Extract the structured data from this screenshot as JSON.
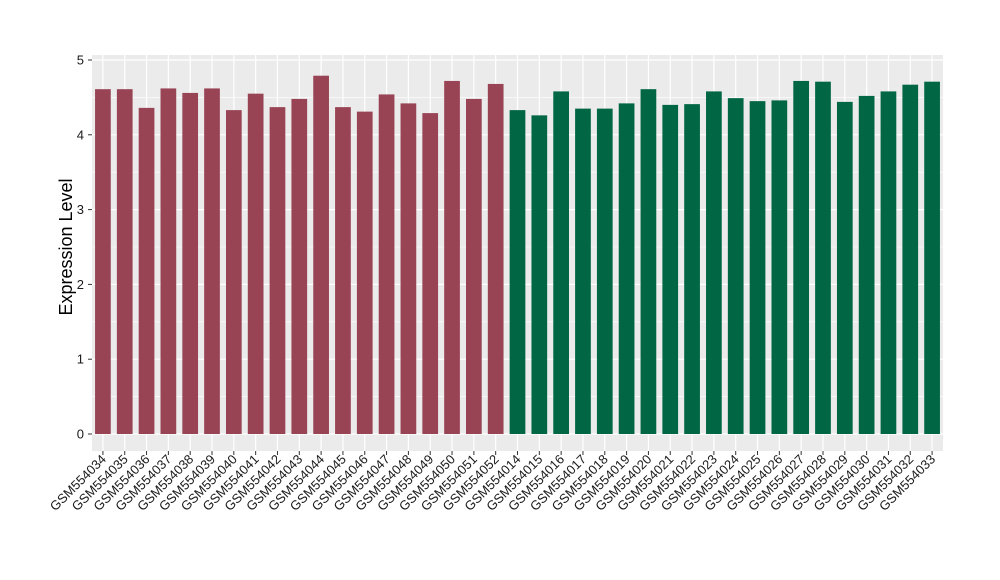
{
  "chart_data": {
    "type": "bar",
    "title": "",
    "xlabel": "",
    "ylabel": "Expression Level",
    "ylim": [
      0,
      5
    ],
    "yticks": [
      0,
      1,
      2,
      3,
      4,
      5
    ],
    "grid": true,
    "background": "#EBEBEB",
    "gridline_color": "#FFFFFF",
    "categories": [
      "GSM554034",
      "GSM554035",
      "GSM554036",
      "GSM554037",
      "GSM554038",
      "GSM554039",
      "GSM554040",
      "GSM554041",
      "GSM554042",
      "GSM554043",
      "GSM554044",
      "GSM554045",
      "GSM554046",
      "GSM554047",
      "GSM554048",
      "GSM554049",
      "GSM554050",
      "GSM554051",
      "GSM554052",
      "GSM554014",
      "GSM554015",
      "GSM554016",
      "GSM554017",
      "GSM554018",
      "GSM554019",
      "GSM554020",
      "GSM554021",
      "GSM554022",
      "GSM554023",
      "GSM554024",
      "GSM554025",
      "GSM554026",
      "GSM554027",
      "GSM554028",
      "GSM554029",
      "GSM554030",
      "GSM554031",
      "GSM554032",
      "GSM554033"
    ],
    "values": [
      4.61,
      4.61,
      4.36,
      4.62,
      4.56,
      4.62,
      4.33,
      4.55,
      4.37,
      4.48,
      4.79,
      4.37,
      4.31,
      4.54,
      4.42,
      4.29,
      4.72,
      4.48,
      4.68,
      4.33,
      4.26,
      4.58,
      4.35,
      4.35,
      4.42,
      4.61,
      4.4,
      4.41,
      4.58,
      4.49,
      4.45,
      4.46,
      4.72,
      4.71,
      4.44,
      4.52,
      4.58,
      4.67,
      4.71
    ],
    "bar_colors": [
      "#994455",
      "#994455",
      "#994455",
      "#994455",
      "#994455",
      "#994455",
      "#994455",
      "#994455",
      "#994455",
      "#994455",
      "#994455",
      "#994455",
      "#994455",
      "#994455",
      "#994455",
      "#994455",
      "#994455",
      "#994455",
      "#994455",
      "#006644",
      "#006644",
      "#006644",
      "#006644",
      "#006644",
      "#006644",
      "#006644",
      "#006644",
      "#006644",
      "#006644",
      "#006644",
      "#006644",
      "#006644",
      "#006644",
      "#006644",
      "#006644",
      "#006644",
      "#006644",
      "#006644",
      "#006644"
    ]
  }
}
